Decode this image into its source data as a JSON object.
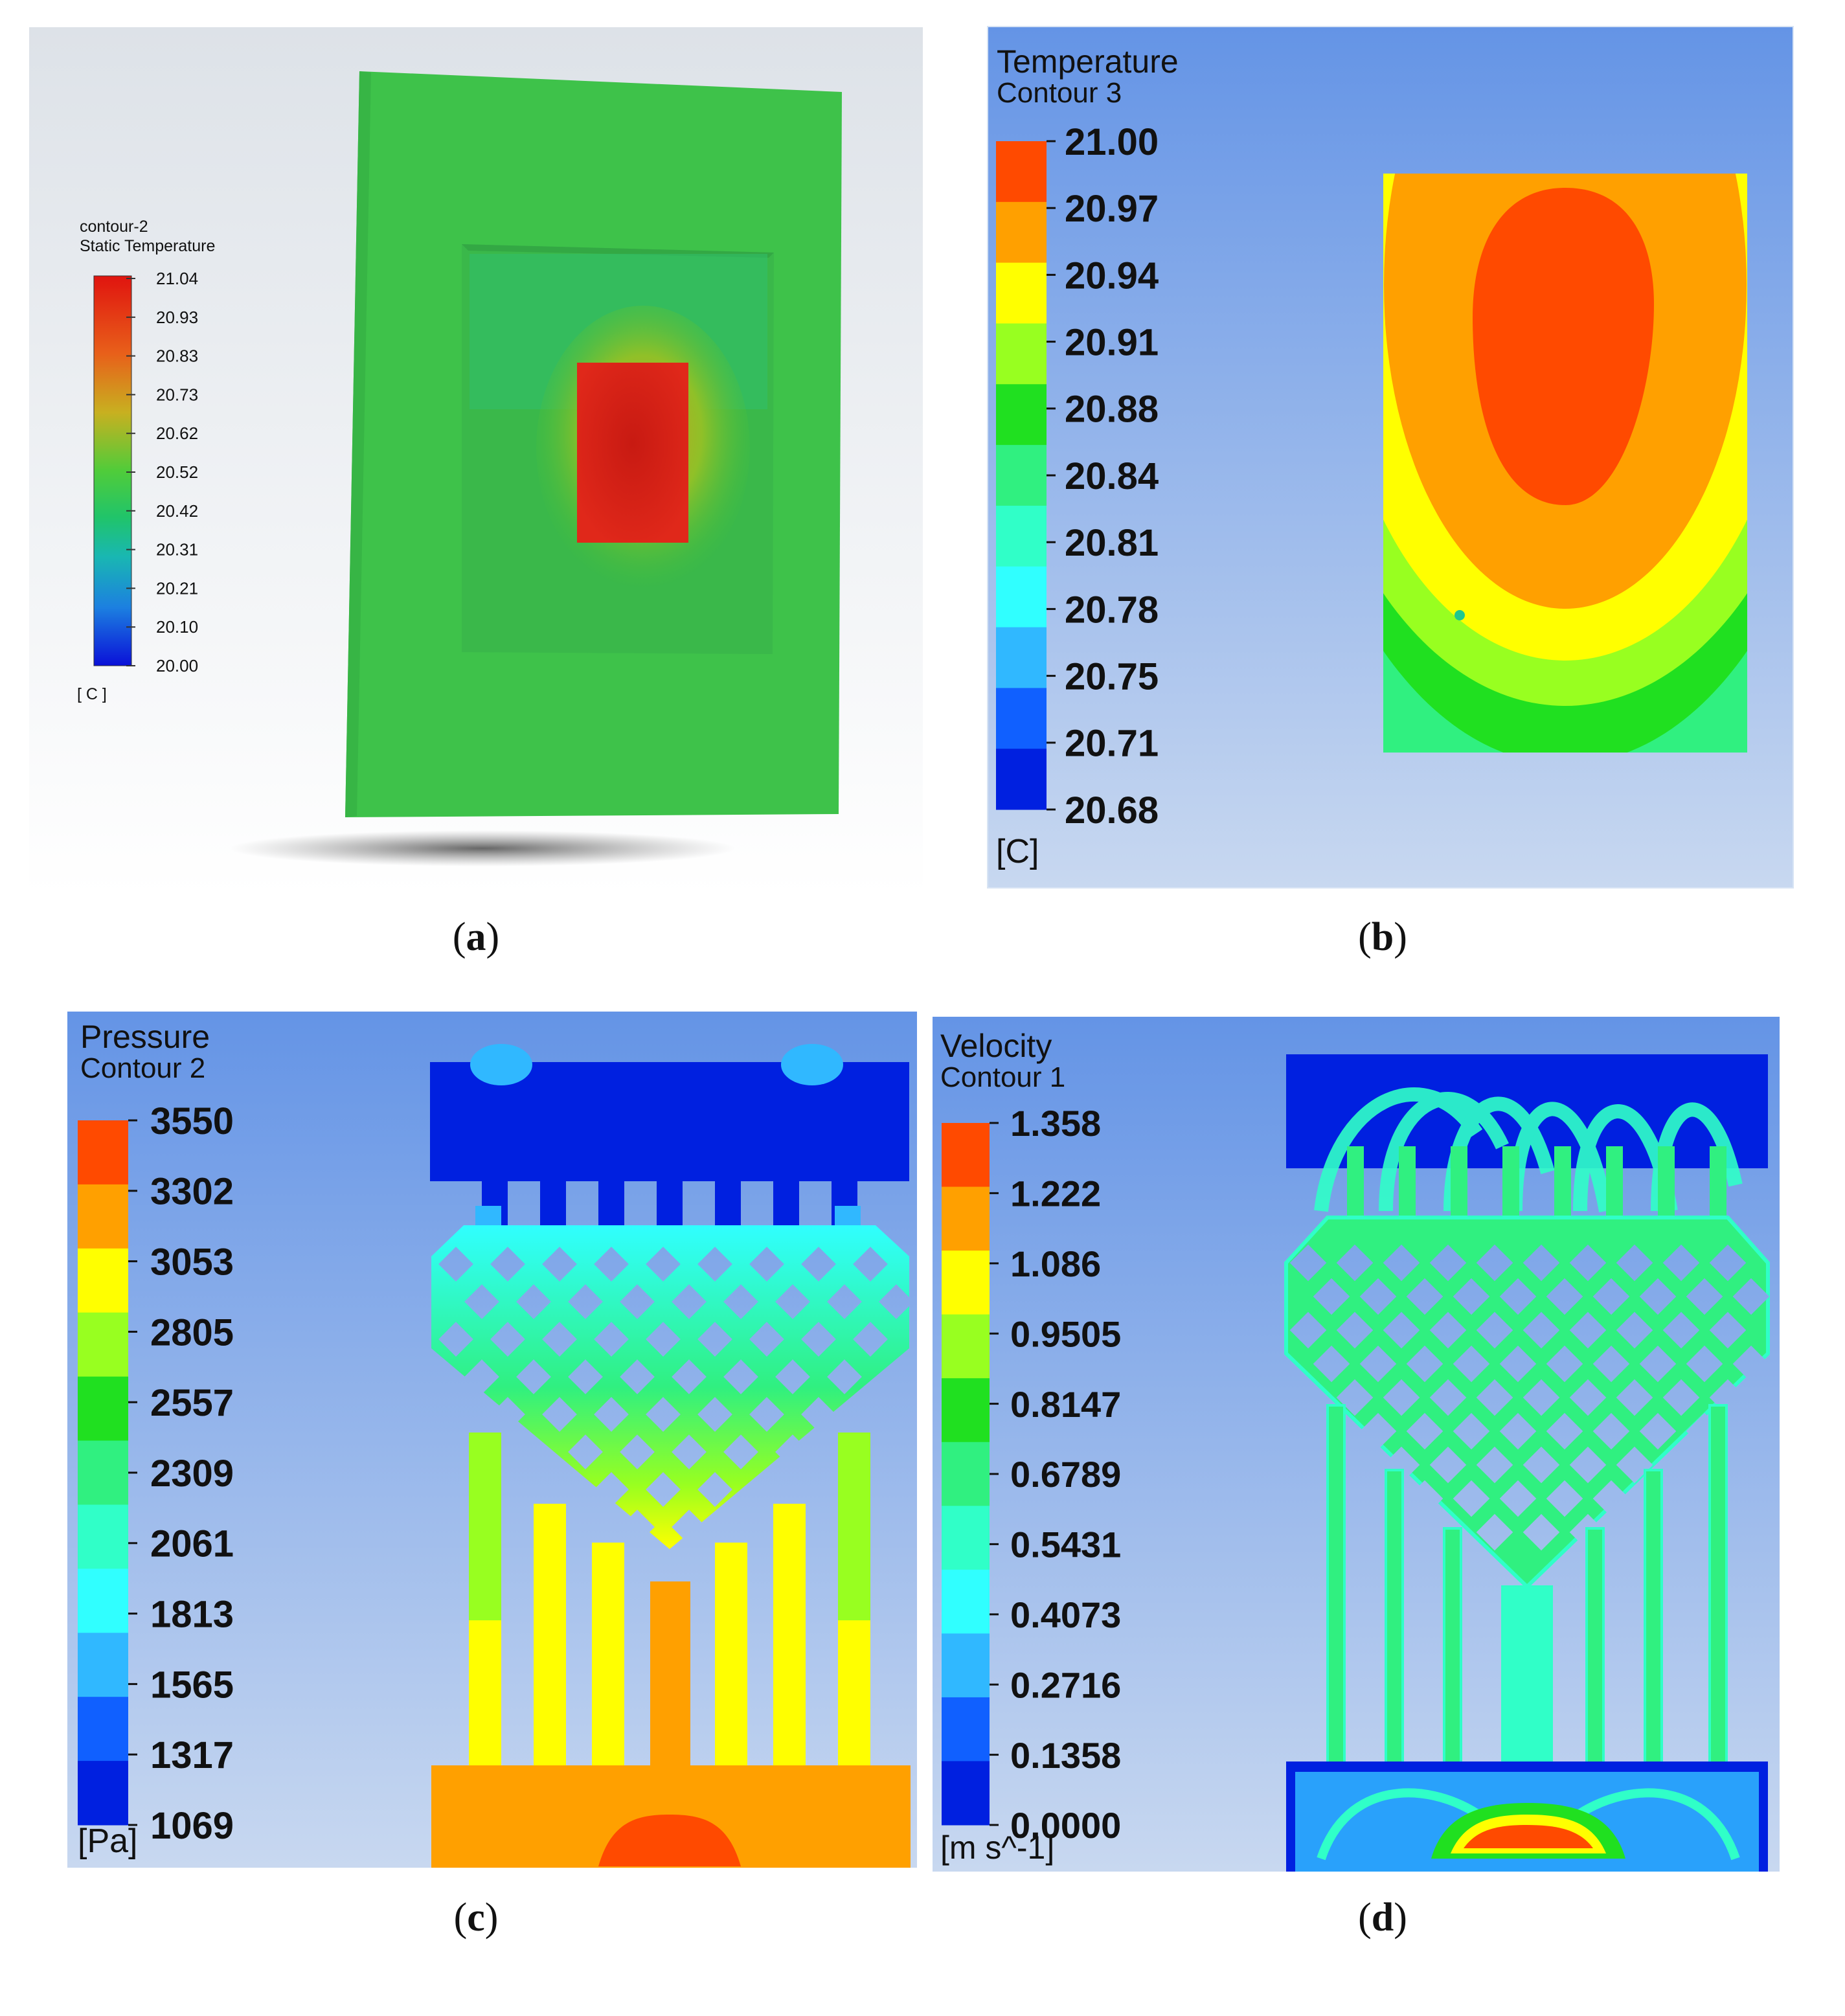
{
  "panel_a": {
    "legend_title1": "contour-2",
    "legend_title2": "Static Temperature",
    "ticks": [
      "21.04",
      "20.93",
      "20.83",
      "20.73",
      "20.62",
      "20.52",
      "20.42",
      "20.31",
      "20.21",
      "20.10",
      "20.00"
    ],
    "unit": "[ C ]",
    "caption_letter": "a"
  },
  "panel_b": {
    "title1": "Temperature",
    "title2": "Contour 3",
    "ticks": [
      "21.00",
      "20.97",
      "20.94",
      "20.91",
      "20.88",
      "20.84",
      "20.81",
      "20.78",
      "20.75",
      "20.71",
      "20.68"
    ],
    "unit": "[C]",
    "caption_letter": "b"
  },
  "panel_c": {
    "title1": "Pressure",
    "title2": "Contour 2",
    "ticks": [
      "3550",
      "3302",
      "3053",
      "2805",
      "2557",
      "2309",
      "2061",
      "1813",
      "1565",
      "1317",
      "1069"
    ],
    "unit": "[Pa]",
    "caption_letter": "c"
  },
  "panel_d": {
    "title1": "Velocity",
    "title2": "Contour 1",
    "ticks": [
      "1.358",
      "1.222",
      "1.086",
      "0.9505",
      "0.8147",
      "0.6789",
      "0.5431",
      "0.4073",
      "0.2716",
      "0.1358",
      "0.0000"
    ],
    "unit": "[m s^-1]",
    "caption_letter": "d"
  },
  "colors": {
    "fluent_scale": [
      "#e0140f",
      "#e84a10",
      "#ef8a12",
      "#d9c21a",
      "#a6d41e",
      "#4fcf3a",
      "#20c46a",
      "#19b7a2",
      "#1c9ad0",
      "#1560e6",
      "#0a18d8"
    ],
    "cfx_scale": [
      "#ff4a00",
      "#ffa000",
      "#ffff00",
      "#98ff20",
      "#20e020",
      "#30f080",
      "#30ffc8",
      "#30ffff",
      "#30b8ff",
      "#1060ff",
      "#0020e0"
    ],
    "cfx_bg_top": "#6494e6",
    "cfx_bg_bottom": "#c8d8f0"
  }
}
